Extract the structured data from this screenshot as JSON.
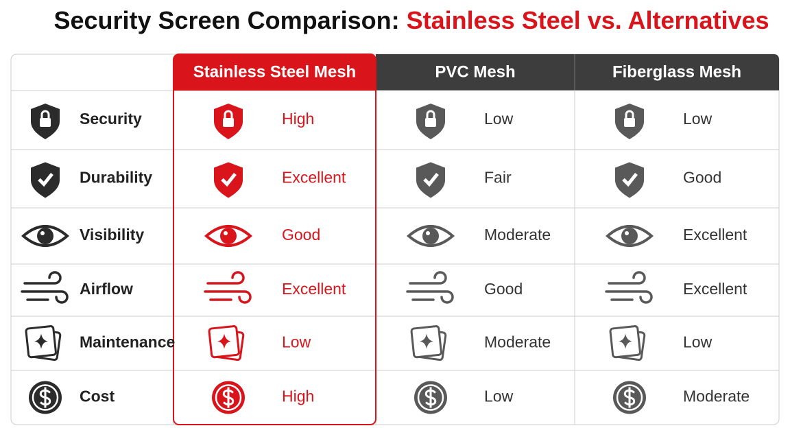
{
  "header": {
    "title": "Security Screen Comparison:",
    "title_highlight": "Stainless Steel vs. Alternatives"
  },
  "table": {
    "columns": [
      "Stainless Steel Mesh",
      "PVC Mesh",
      "Fiberglass Mesh"
    ],
    "rows": [
      {
        "label": "Security",
        "values": [
          "High",
          "Low",
          "Low"
        ]
      },
      {
        "label": "Durability",
        "values": [
          "Excellent",
          "Fair",
          "Good"
        ]
      },
      {
        "label": "Visibility",
        "values": [
          "Good",
          "Moderate",
          "Excellent"
        ]
      },
      {
        "label": "Airflow",
        "values": [
          "Excellent",
          "Good",
          "Excellent"
        ]
      },
      {
        "label": "Maintenance",
        "values": [
          "Low",
          "Moderate",
          "Low"
        ]
      },
      {
        "label": "Cost",
        "values": [
          "High",
          "Low",
          "Moderate"
        ]
      }
    ]
  }
}
